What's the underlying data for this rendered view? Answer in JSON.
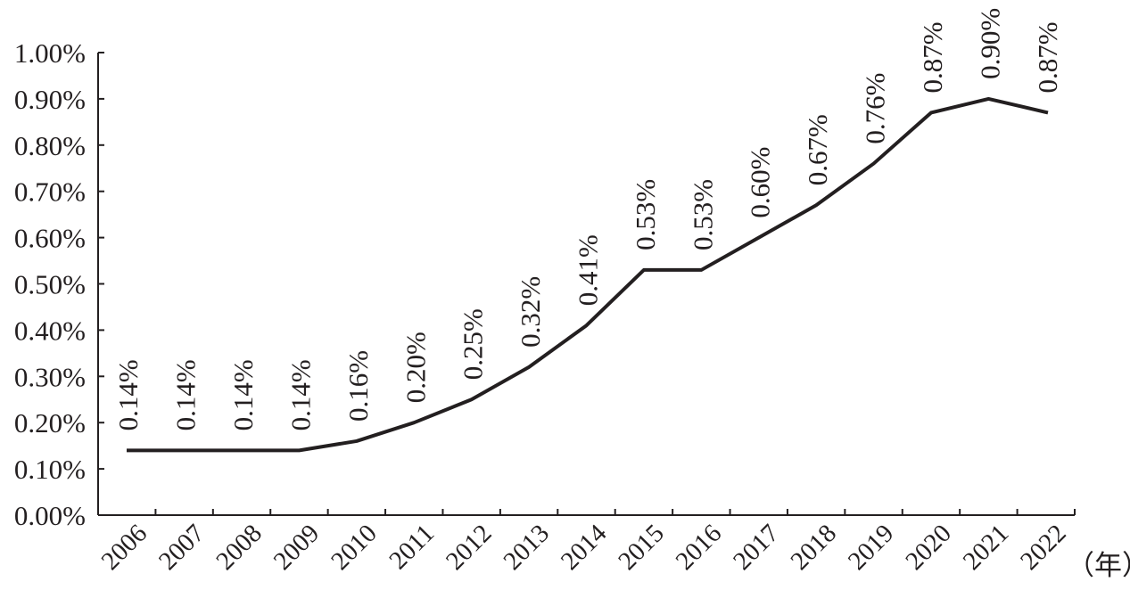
{
  "chart_data": {
    "type": "line",
    "categories": [
      "2006",
      "2007",
      "2008",
      "2009",
      "2010",
      "2011",
      "2012",
      "2013",
      "2014",
      "2015",
      "2016",
      "2017",
      "2018",
      "2019",
      "2020",
      "2021",
      "2022"
    ],
    "values": [
      0.14,
      0.14,
      0.14,
      0.14,
      0.16,
      0.2,
      0.25,
      0.32,
      0.41,
      0.53,
      0.53,
      0.6,
      0.67,
      0.76,
      0.87,
      0.9,
      0.87
    ],
    "data_labels": [
      "0.14%",
      "0.14%",
      "0.14%",
      "0.14%",
      "0.16%",
      "0.20%",
      "0.25%",
      "0.32%",
      "0.41%",
      "0.53%",
      "0.53%",
      "0.60%",
      "0.67%",
      "0.76%",
      "0.87%",
      "0.90%",
      "0.87%"
    ],
    "y_ticks": [
      0,
      0.1,
      0.2,
      0.3,
      0.4,
      0.5,
      0.6,
      0.7,
      0.8,
      0.9,
      1.0
    ],
    "y_tick_labels": [
      "0.00%",
      "0.10%",
      "0.20%",
      "0.30%",
      "0.40%",
      "0.50%",
      "0.60%",
      "0.70%",
      "0.80%",
      "0.90%",
      "1.00%"
    ],
    "ylim": [
      0,
      1.0
    ],
    "x_unit": "（年）",
    "grid": false,
    "legend": "none",
    "line_color": "#231f20"
  }
}
